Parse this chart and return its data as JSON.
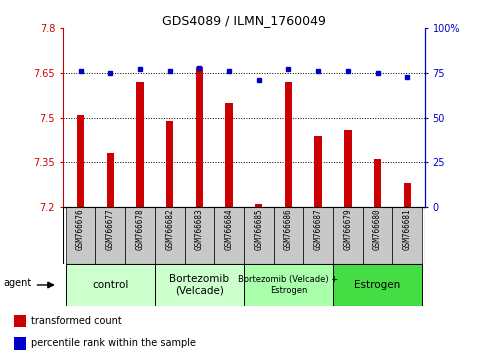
{
  "title": "GDS4089 / ILMN_1760049",
  "samples": [
    "GSM766676",
    "GSM766677",
    "GSM766678",
    "GSM766682",
    "GSM766683",
    "GSM766684",
    "GSM766685",
    "GSM766686",
    "GSM766687",
    "GSM766679",
    "GSM766680",
    "GSM766681"
  ],
  "transformed_counts": [
    7.51,
    7.38,
    7.62,
    7.49,
    7.67,
    7.55,
    7.21,
    7.62,
    7.44,
    7.46,
    7.36,
    7.28
  ],
  "percentile_ranks": [
    76,
    75,
    77,
    76,
    78,
    76,
    71,
    77,
    76,
    76,
    75,
    73
  ],
  "bar_color": "#cc0000",
  "dot_color": "#0000cc",
  "ylim_left": [
    7.2,
    7.8
  ],
  "ylim_right": [
    0,
    100
  ],
  "yticks_left": [
    7.2,
    7.35,
    7.5,
    7.65,
    7.8
  ],
  "yticks_right": [
    0,
    25,
    50,
    75,
    100
  ],
  "ytick_labels_left": [
    "7.2",
    "7.35",
    "7.5",
    "7.65",
    "7.8"
  ],
  "ytick_labels_right": [
    "0",
    "25",
    "50",
    "75",
    "100%"
  ],
  "hlines": [
    7.35,
    7.5,
    7.65
  ],
  "groups": [
    {
      "label": "control",
      "start": 0,
      "end": 2,
      "color": "#ccffcc"
    },
    {
      "label": "Bortezomib\n(Velcade)",
      "start": 3,
      "end": 5,
      "color": "#ccffcc"
    },
    {
      "label": "Bortezomib (Velcade) +\nEstrogen",
      "start": 6,
      "end": 8,
      "color": "#aaffaa"
    },
    {
      "label": "Estrogen",
      "start": 9,
      "end": 11,
      "color": "#44dd44"
    }
  ],
  "agent_label": "agent",
  "legend_items": [
    {
      "color": "#cc0000",
      "label": "transformed count"
    },
    {
      "color": "#0000cc",
      "label": "percentile rank within the sample"
    }
  ],
  "background_color": "#ffffff",
  "tick_area_color": "#c8c8c8"
}
